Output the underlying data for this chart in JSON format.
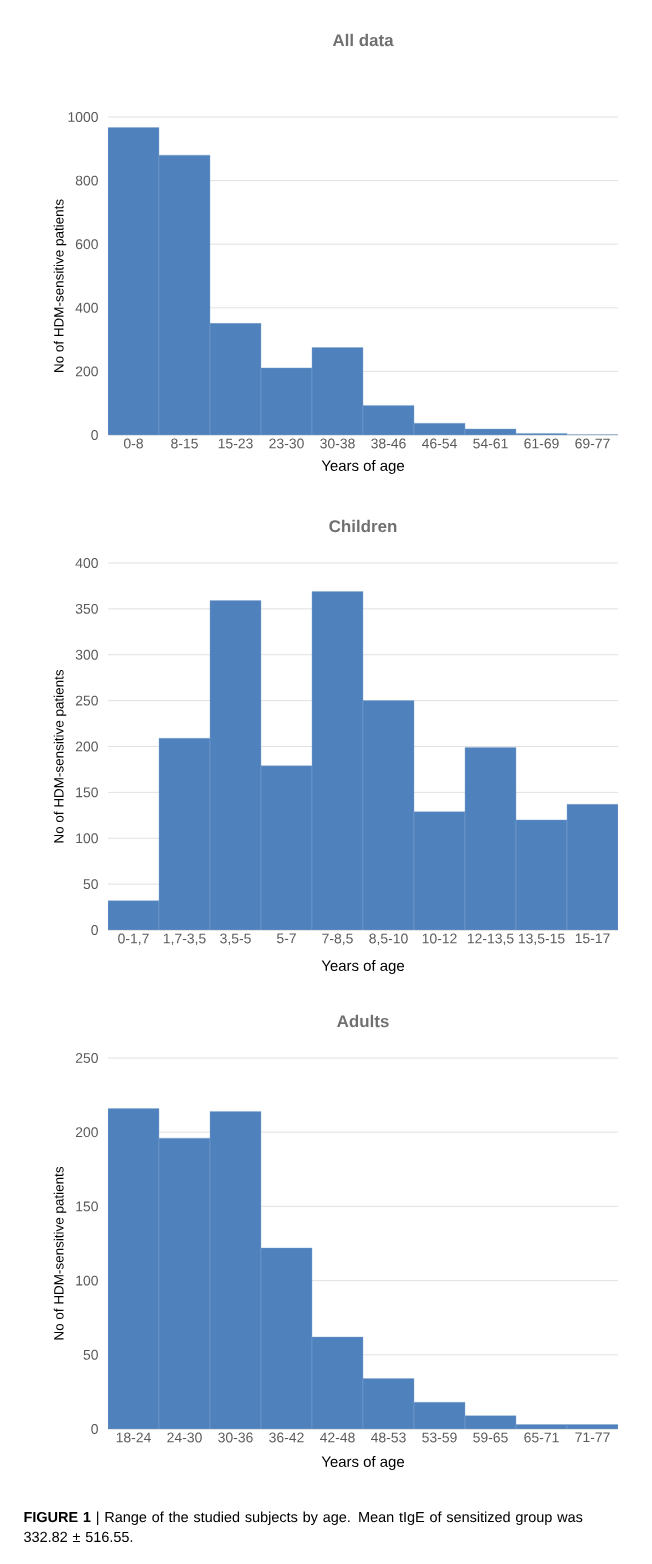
{
  "chart_data": [
    {
      "type": "bar",
      "title": "All data",
      "xlabel": "Years of  age",
      "ylabel": "No of HDM-sensitive patients",
      "categories": [
        "0-8",
        "8-15",
        "15-23",
        "23-30",
        "30-38",
        "38-46",
        "46-54",
        "54-61",
        "61-69",
        "69-77"
      ],
      "values": [
        967,
        880,
        351,
        211,
        275,
        93,
        37,
        19,
        5,
        1
      ],
      "color": "#4f81bd",
      "ylim": [
        0,
        1000
      ],
      "yticks": [
        0,
        200,
        400,
        600,
        800,
        1000
      ],
      "grid": "y"
    },
    {
      "type": "bar",
      "title": "Children",
      "xlabel": "Years of age",
      "ylabel": "No of HDM-sensitive patients",
      "categories": [
        "0-1,7",
        "1,7-3,5",
        "3,5-5",
        "5-7",
        "7-8,5",
        "8,5-10",
        "10-12",
        "12-13,5",
        "13,5-15",
        "15-17"
      ],
      "values": [
        32,
        209,
        359,
        179,
        369,
        250,
        129,
        199,
        120,
        137
      ],
      "color": "#4f81bd",
      "ylim": [
        0,
        400
      ],
      "yticks": [
        0,
        50,
        100,
        150,
        200,
        250,
        300,
        350,
        400
      ],
      "grid": "y"
    },
    {
      "type": "bar",
      "title": "Adults",
      "xlabel": "Years of  age",
      "ylabel": "No of HDM-sensitive patients",
      "categories": [
        "18-24",
        "24-30",
        "30-36",
        "36-42",
        "42-48",
        "48-53",
        "53-59",
        "59-65",
        "65-71",
        "71-77"
      ],
      "values": [
        216,
        196,
        214,
        122,
        62,
        34,
        18,
        9,
        3,
        3
      ],
      "color": "#4f81bd",
      "ylim": [
        0,
        250
      ],
      "yticks": [
        0,
        50,
        100,
        150,
        200,
        250
      ],
      "grid": "y",
      "annotations": [
        "**FIGURE 1** | Range of the studied subjects by age. Mean tIgE of sensitized group was 332.82 ± 516.55."
      ]
    }
  ]
}
